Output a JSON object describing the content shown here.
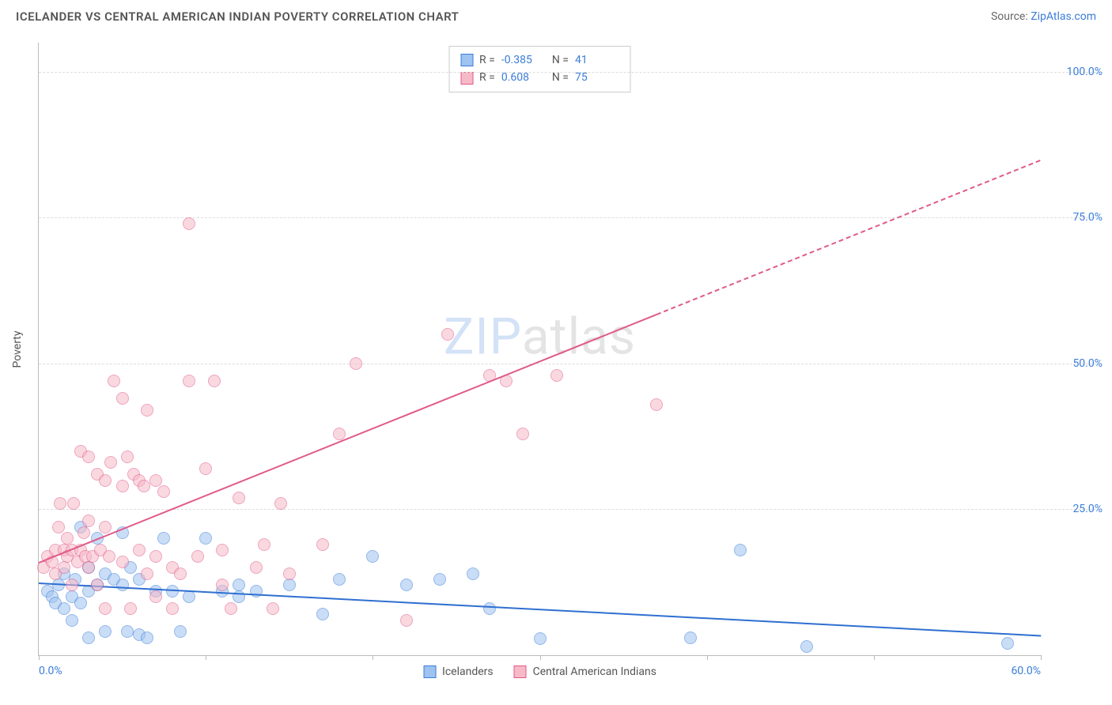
{
  "title": "ICELANDER VS CENTRAL AMERICAN INDIAN POVERTY CORRELATION CHART",
  "source_label": "Source: ",
  "source_link": "ZipAtlas.com",
  "ylabel": "Poverty",
  "watermark_a": "ZIP",
  "watermark_b": "atlas",
  "chart": {
    "type": "scatter",
    "background_color": "#ffffff",
    "grid_color": "#dddddd",
    "axis_color": "#bbbbbb",
    "tick_label_color": "#3b7dd8",
    "xlim": [
      0,
      60
    ],
    "ylim": [
      0,
      105
    ],
    "yticks": [
      {
        "v": 25,
        "label": "25.0%"
      },
      {
        "v": 50,
        "label": "50.0%"
      },
      {
        "v": 75,
        "label": "75.0%"
      },
      {
        "v": 100,
        "label": "100.0%"
      }
    ],
    "xticks": [
      0,
      10,
      20,
      30,
      40,
      50,
      60
    ],
    "xtick_labels": {
      "0": "0.0%",
      "60": "60.0%"
    },
    "marker_size": 16,
    "marker_opacity": 0.55
  },
  "series": [
    {
      "name": "Icelanders",
      "fill": "#9ec3f0",
      "stroke": "#3b7dd8",
      "trend_color": "#2f6fd0",
      "R": "-0.385",
      "N": "41",
      "trend": {
        "x1": 0,
        "y1": 12.5,
        "x2": 60,
        "y2": 3.5,
        "dashed_from_x": null
      },
      "points": [
        [
          0.5,
          11
        ],
        [
          0.8,
          10
        ],
        [
          1,
          9
        ],
        [
          1.2,
          12
        ],
        [
          1.5,
          8
        ],
        [
          1.5,
          14
        ],
        [
          2,
          10
        ],
        [
          2,
          6
        ],
        [
          2.2,
          13
        ],
        [
          2.5,
          9
        ],
        [
          2.5,
          22
        ],
        [
          3,
          11
        ],
        [
          3,
          15
        ],
        [
          3,
          3
        ],
        [
          3.5,
          12
        ],
        [
          3.5,
          20
        ],
        [
          4,
          14
        ],
        [
          4,
          4
        ],
        [
          4.5,
          13
        ],
        [
          5,
          21
        ],
        [
          5,
          12
        ],
        [
          5.3,
          4
        ],
        [
          5.5,
          15
        ],
        [
          6,
          13
        ],
        [
          6,
          3.5
        ],
        [
          6.5,
          3
        ],
        [
          7,
          11
        ],
        [
          7.5,
          20
        ],
        [
          8,
          11
        ],
        [
          8.5,
          4
        ],
        [
          9,
          10
        ],
        [
          10,
          20
        ],
        [
          11,
          11
        ],
        [
          12,
          12
        ],
        [
          12,
          10
        ],
        [
          13,
          11
        ],
        [
          15,
          12
        ],
        [
          17,
          7
        ],
        [
          18,
          13
        ],
        [
          20,
          17
        ],
        [
          22,
          12
        ],
        [
          24,
          13
        ],
        [
          26,
          14
        ],
        [
          27,
          8
        ],
        [
          30,
          2.8
        ],
        [
          39,
          3
        ],
        [
          42,
          18
        ],
        [
          46,
          1.5
        ],
        [
          58,
          2
        ]
      ]
    },
    {
      "name": "Central American Indians",
      "fill": "#f7b9c8",
      "stroke": "#e05a8a",
      "trend_color": "#e05a8a",
      "R": "0.608",
      "N": "75",
      "trend": {
        "x1": 0,
        "y1": 16,
        "x2": 60,
        "y2": 85,
        "dashed_from_x": 37
      },
      "points": [
        [
          0.3,
          15
        ],
        [
          0.5,
          17
        ],
        [
          0.8,
          16
        ],
        [
          1,
          18
        ],
        [
          1,
          14
        ],
        [
          1.2,
          22
        ],
        [
          1.3,
          26
        ],
        [
          1.5,
          18
        ],
        [
          1.5,
          15
        ],
        [
          1.7,
          17
        ],
        [
          1.7,
          20
        ],
        [
          2,
          18
        ],
        [
          2,
          12
        ],
        [
          2.1,
          26
        ],
        [
          2.3,
          16
        ],
        [
          2.5,
          35
        ],
        [
          2.5,
          18
        ],
        [
          2.7,
          21
        ],
        [
          2.8,
          17
        ],
        [
          3,
          15
        ],
        [
          3,
          23
        ],
        [
          3,
          34
        ],
        [
          3.2,
          17
        ],
        [
          3.5,
          12
        ],
        [
          3.5,
          31
        ],
        [
          3.7,
          18
        ],
        [
          4,
          30
        ],
        [
          4,
          8
        ],
        [
          4,
          22
        ],
        [
          4.2,
          17
        ],
        [
          4.3,
          33
        ],
        [
          4.5,
          47
        ],
        [
          5,
          44
        ],
        [
          5,
          29
        ],
        [
          5,
          16
        ],
        [
          5.3,
          34
        ],
        [
          5.5,
          8
        ],
        [
          5.7,
          31
        ],
        [
          6,
          30
        ],
        [
          6,
          18
        ],
        [
          6.3,
          29
        ],
        [
          6.5,
          42
        ],
        [
          6.5,
          14
        ],
        [
          7,
          17
        ],
        [
          7,
          10
        ],
        [
          7,
          30
        ],
        [
          7.5,
          28
        ],
        [
          8,
          15
        ],
        [
          8,
          8
        ],
        [
          8.5,
          14
        ],
        [
          9,
          47
        ],
        [
          9,
          74
        ],
        [
          9.5,
          17
        ],
        [
          10,
          32
        ],
        [
          10.5,
          47
        ],
        [
          11,
          12
        ],
        [
          11,
          18
        ],
        [
          11.5,
          8
        ],
        [
          12,
          27
        ],
        [
          13,
          15
        ],
        [
          13.5,
          19
        ],
        [
          14,
          8
        ],
        [
          14.5,
          26
        ],
        [
          15,
          14
        ],
        [
          17,
          19
        ],
        [
          18,
          38
        ],
        [
          19,
          50
        ],
        [
          22,
          6
        ],
        [
          24.5,
          55
        ],
        [
          27,
          48
        ],
        [
          28,
          47
        ],
        [
          29,
          38
        ],
        [
          31,
          48
        ],
        [
          37,
          43
        ]
      ]
    }
  ],
  "stats_labels": {
    "R": "R =",
    "N": "N ="
  },
  "legend_title": ""
}
